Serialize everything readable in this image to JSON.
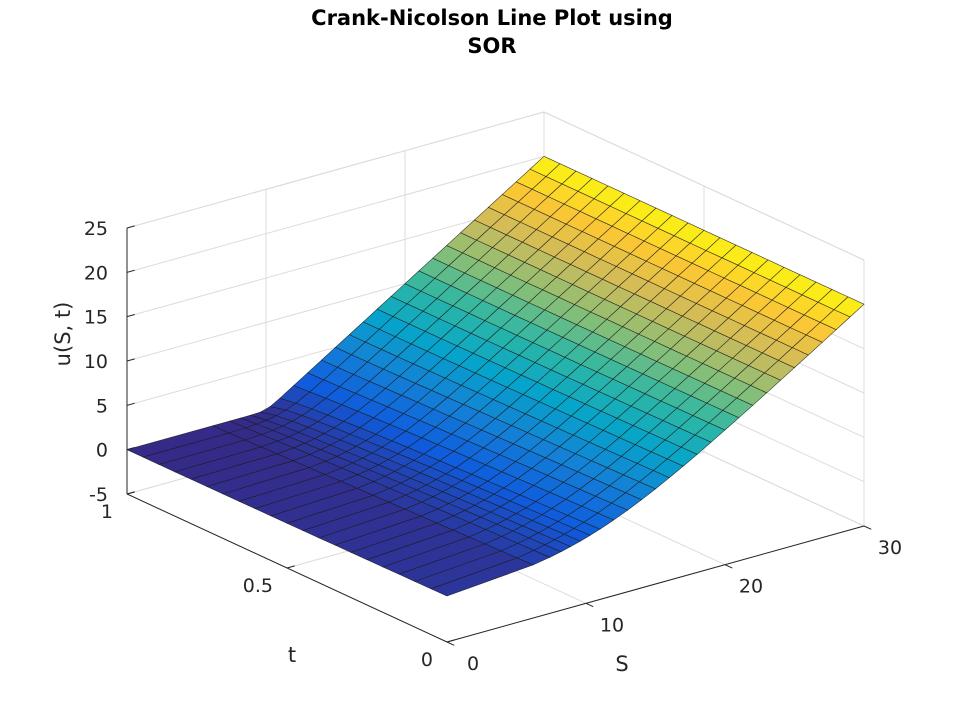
{
  "chart_data": {
    "type": "surface",
    "title": [
      "Crank-Nicolson Line Plot using",
      "SOR"
    ],
    "xlabel": "S",
    "ylabel": "t",
    "zlabel": "u(S, t)",
    "xlim": [
      0,
      30
    ],
    "ylim": [
      0,
      1
    ],
    "zlim": [
      -5,
      25
    ],
    "xticks": [
      0,
      10,
      20,
      30
    ],
    "yticks": [
      0,
      0.5,
      1
    ],
    "zticks": [
      -5,
      0,
      5,
      10,
      15,
      20,
      25
    ],
    "xtick_labels": [
      "0",
      "10",
      "20",
      "30"
    ],
    "ytick_labels": [
      "0",
      "0.5",
      "1"
    ],
    "ztick_labels": [
      "-5",
      "0",
      "5",
      "10",
      "15",
      "20",
      "25"
    ],
    "grid": true,
    "colormap": "parula",
    "surface": {
      "S": [
        0,
        6.2,
        7.4,
        8.2,
        8.9,
        9.6,
        10.3,
        11,
        12,
        13,
        14,
        15,
        16,
        17,
        18,
        19,
        20,
        21,
        22,
        23,
        24,
        25,
        26,
        27,
        28,
        29,
        30
      ],
      "t": [
        0,
        0.05,
        0.1,
        0.15,
        0.2,
        0.25,
        0.3,
        0.35,
        0.4,
        0.45,
        0.5,
        0.55,
        0.6,
        0.65,
        0.7,
        0.75,
        0.8,
        0.85,
        0.9,
        0.95,
        1
      ],
      "strike": 10,
      "note_u_at_t0": [
        0,
        0.02,
        0.08,
        0.2,
        0.4,
        0.7,
        1.1,
        1.6,
        2.4,
        3.3,
        4.2,
        5.2,
        6.2,
        7.2,
        8.2,
        9.2,
        10.2,
        11.2,
        12.2,
        13.2,
        14.2,
        15.2,
        16.2,
        17.2,
        18.2,
        19.2,
        20.2
      ],
      "note_u_at_t1": [
        0,
        0,
        0,
        0,
        0,
        0,
        0,
        1,
        2,
        3,
        4,
        5,
        6,
        7,
        8,
        9,
        10,
        11,
        12,
        13,
        14,
        15,
        16,
        17,
        18,
        19,
        20
      ]
    }
  },
  "colors": {
    "parula": [
      "#352a87",
      "#0f5cdd",
      "#1481d6",
      "#06a4ca",
      "#2eb7a4",
      "#87bf77",
      "#d1bb59",
      "#fec832",
      "#f9fb0e"
    ]
  }
}
